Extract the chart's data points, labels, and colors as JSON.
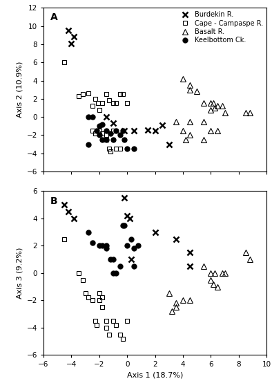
{
  "title_A": "A",
  "title_B": "B",
  "xlabel": "Axis 1 (18.7%)",
  "ylabel_A": "Axis 2 (10.9%)",
  "ylabel_B": "Axis 3 (9.2%)",
  "xlim": [
    -6,
    10
  ],
  "ylim_A": [
    -6,
    12
  ],
  "ylim_B": [
    -6,
    6
  ],
  "xticks": [
    -6,
    -4,
    -2,
    0,
    2,
    4,
    6,
    8,
    10
  ],
  "yticks_A": [
    -6,
    -4,
    -2,
    0,
    2,
    4,
    6,
    8,
    10,
    12
  ],
  "yticks_B": [
    -6,
    -4,
    -2,
    0,
    2,
    4,
    6
  ],
  "legend_labels": [
    "Burdekin R.",
    "Cape - Campaspe R.",
    "Basalt R.",
    "Keelbottom Ck."
  ],
  "burdekin_A": [
    [
      -4.2,
      9.5
    ],
    [
      -3.8,
      8.8
    ],
    [
      -4.0,
      8.1
    ],
    [
      -1.5,
      0.0
    ],
    [
      -1.0,
      -0.7
    ],
    [
      -0.2,
      -1.5
    ],
    [
      0.5,
      -1.5
    ],
    [
      1.5,
      -1.4
    ],
    [
      2.5,
      -0.9
    ],
    [
      2.0,
      -1.5
    ],
    [
      3.0,
      -3.0
    ]
  ],
  "cape_A": [
    [
      -4.5,
      6.0
    ],
    [
      -3.5,
      2.3
    ],
    [
      -3.2,
      2.5
    ],
    [
      -2.8,
      2.6
    ],
    [
      -2.5,
      1.2
    ],
    [
      -2.3,
      2.0
    ],
    [
      -2.1,
      1.5
    ],
    [
      -2.0,
      0.8
    ],
    [
      -1.8,
      1.5
    ],
    [
      -1.5,
      2.5
    ],
    [
      -1.3,
      1.8
    ],
    [
      -1.0,
      1.5
    ],
    [
      -0.8,
      1.5
    ],
    [
      -0.5,
      2.5
    ],
    [
      -0.3,
      2.5
    ],
    [
      0.0,
      1.5
    ],
    [
      -2.5,
      -1.5
    ],
    [
      -2.3,
      -1.8
    ],
    [
      -2.0,
      -1.5
    ],
    [
      -1.8,
      -1.8
    ],
    [
      -1.5,
      -2.0
    ],
    [
      -1.5,
      -2.5
    ],
    [
      -1.3,
      -3.5
    ],
    [
      -1.2,
      -3.8
    ],
    [
      -1.0,
      -1.5
    ],
    [
      -0.8,
      -3.5
    ],
    [
      -0.5,
      -3.5
    ]
  ],
  "basalt_A": [
    [
      4.0,
      4.2
    ],
    [
      4.5,
      3.5
    ],
    [
      4.5,
      3.0
    ],
    [
      5.0,
      2.8
    ],
    [
      3.5,
      -0.5
    ],
    [
      4.5,
      -0.5
    ],
    [
      5.5,
      -0.5
    ],
    [
      4.0,
      -1.5
    ],
    [
      4.5,
      -2.0
    ],
    [
      4.2,
      -2.5
    ],
    [
      5.5,
      -2.5
    ],
    [
      5.5,
      1.5
    ],
    [
      6.0,
      1.5
    ],
    [
      6.2,
      1.5
    ],
    [
      6.5,
      1.2
    ],
    [
      6.3,
      1.0
    ],
    [
      6.0,
      0.8
    ],
    [
      6.8,
      1.2
    ],
    [
      7.0,
      0.5
    ],
    [
      8.5,
      0.5
    ],
    [
      8.8,
      0.5
    ],
    [
      6.0,
      -1.5
    ],
    [
      6.5,
      -1.5
    ]
  ],
  "keelbottom_A": [
    [
      -2.8,
      0.0
    ],
    [
      -2.5,
      0.0
    ],
    [
      -2.0,
      -1.0
    ],
    [
      -1.8,
      -0.8
    ],
    [
      -2.2,
      -1.5
    ],
    [
      -2.0,
      -2.0
    ],
    [
      -1.8,
      -2.5
    ],
    [
      -1.5,
      -2.5
    ],
    [
      -1.5,
      -1.5
    ],
    [
      -1.2,
      -1.8
    ],
    [
      -1.0,
      -2.5
    ],
    [
      -0.8,
      -1.5
    ],
    [
      -0.5,
      -2.0
    ],
    [
      -0.3,
      -1.5
    ],
    [
      0.0,
      -3.5
    ],
    [
      0.5,
      -3.5
    ],
    [
      -0.2,
      -2.5
    ],
    [
      -2.8,
      -3.0
    ]
  ],
  "burdekin_B": [
    [
      -4.5,
      5.0
    ],
    [
      -4.2,
      4.5
    ],
    [
      -3.8,
      4.0
    ],
    [
      -0.2,
      5.5
    ],
    [
      0.0,
      4.2
    ],
    [
      0.2,
      4.0
    ],
    [
      0.3,
      1.0
    ],
    [
      2.0,
      3.0
    ],
    [
      3.5,
      2.5
    ],
    [
      4.5,
      1.5
    ],
    [
      4.5,
      0.5
    ]
  ],
  "cape_B": [
    [
      -4.5,
      2.5
    ],
    [
      -3.5,
      0.0
    ],
    [
      -3.2,
      -0.5
    ],
    [
      -3.0,
      -1.5
    ],
    [
      -2.8,
      -1.8
    ],
    [
      -2.5,
      -2.0
    ],
    [
      -2.3,
      -3.5
    ],
    [
      -2.2,
      -3.8
    ],
    [
      -2.0,
      -1.5
    ],
    [
      -1.8,
      -1.8
    ],
    [
      -1.5,
      -3.5
    ],
    [
      -1.5,
      -4.0
    ],
    [
      -1.3,
      -4.5
    ],
    [
      -1.0,
      -3.5
    ],
    [
      -0.8,
      -3.8
    ],
    [
      -0.5,
      -4.5
    ],
    [
      -0.3,
      -4.8
    ],
    [
      0.0,
      -3.5
    ],
    [
      -2.0,
      -2.0
    ],
    [
      -1.8,
      -2.5
    ]
  ],
  "basalt_B": [
    [
      3.0,
      -1.5
    ],
    [
      3.5,
      -2.5
    ],
    [
      3.5,
      -2.2
    ],
    [
      4.0,
      -2.0
    ],
    [
      3.2,
      -2.8
    ],
    [
      4.5,
      -2.0
    ],
    [
      5.5,
      0.5
    ],
    [
      6.0,
      0.0
    ],
    [
      6.0,
      -0.5
    ],
    [
      6.2,
      -0.8
    ],
    [
      6.5,
      -1.0
    ],
    [
      6.3,
      0.0
    ],
    [
      6.8,
      0.0
    ],
    [
      7.0,
      0.0
    ],
    [
      8.5,
      1.5
    ],
    [
      8.8,
      1.0
    ]
  ],
  "keelbottom_B": [
    [
      -2.8,
      3.0
    ],
    [
      -2.5,
      2.2
    ],
    [
      -2.0,
      2.0
    ],
    [
      -1.8,
      2.0
    ],
    [
      -1.5,
      2.0
    ],
    [
      -1.5,
      1.8
    ],
    [
      -1.2,
      1.0
    ],
    [
      -1.0,
      1.0
    ],
    [
      -1.0,
      0.0
    ],
    [
      -0.8,
      0.0
    ],
    [
      -0.5,
      0.5
    ],
    [
      -0.3,
      3.5
    ],
    [
      -0.2,
      3.5
    ],
    [
      0.0,
      2.0
    ],
    [
      0.3,
      2.5
    ],
    [
      0.5,
      1.8
    ],
    [
      0.8,
      2.0
    ],
    [
      0.5,
      0.5
    ]
  ],
  "markersize_x": 6,
  "markersize_sq": 5,
  "markersize_tri": 6,
  "markersize_dot": 5,
  "markeredgewidth_x": 1.8,
  "font_size_label": 8,
  "font_size_tick": 7.5,
  "font_size_legend": 7,
  "font_size_panel_label": 10
}
